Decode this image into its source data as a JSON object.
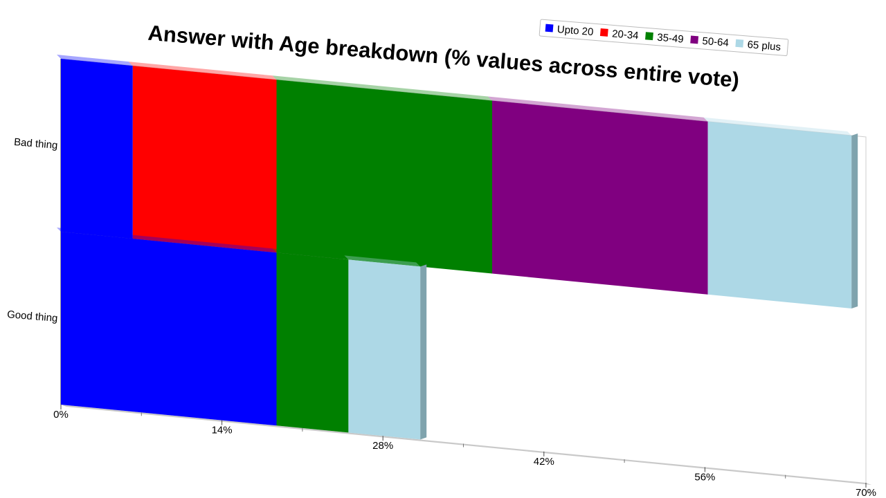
{
  "chart_data": {
    "type": "bar",
    "orientation": "horizontal",
    "stacked": true,
    "title": "Answer with Age breakdown (% values across entire vote)",
    "categories": [
      "Bad thing",
      "Good thing"
    ],
    "series": [
      {
        "name": "Upto 20",
        "color": "#0000ff",
        "values": [
          6.25,
          18.75
        ]
      },
      {
        "name": "20-34",
        "color": "#ff0000",
        "values": [
          12.5,
          0
        ]
      },
      {
        "name": "35-49",
        "color": "#008000",
        "values": [
          18.75,
          6.25
        ]
      },
      {
        "name": "50-64",
        "color": "#800080",
        "values": [
          18.75,
          0
        ]
      },
      {
        "name": "65 plus",
        "color": "#add8e6",
        "values": [
          12.5,
          6.25
        ]
      }
    ],
    "xlim": [
      0,
      70
    ],
    "x_ticks": [
      "0%",
      "14%",
      "28%",
      "42%",
      "56%",
      "70%"
    ],
    "legend": "top-right",
    "grid": false
  }
}
